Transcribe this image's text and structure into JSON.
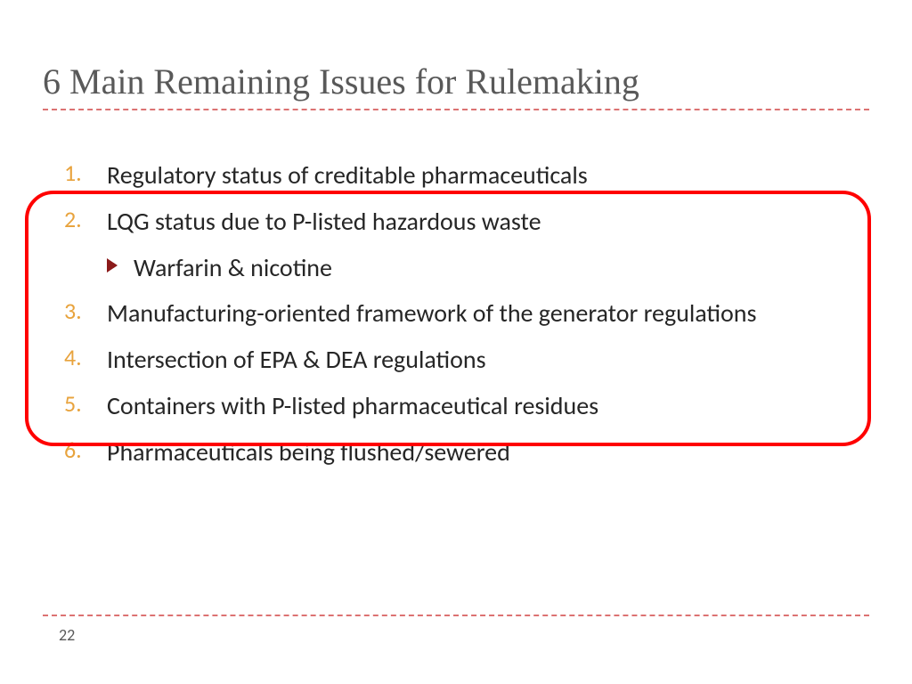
{
  "title": "6 Main Remaining Issues for Rulemaking",
  "items": [
    {
      "num": "1.",
      "text": "Regulatory status of creditable pharmaceuticals"
    },
    {
      "num": "2.",
      "text": "LQG status due to P-listed hazardous waste"
    },
    {
      "num": "3.",
      "text": "Manufacturing-oriented framework of the generator regulations"
    },
    {
      "num": "4.",
      "text": "Intersection of EPA & DEA regulations"
    },
    {
      "num": "5.",
      "text": "Containers with P-listed pharmaceutical residues"
    },
    {
      "num": "6.",
      "text": "Pharmaceuticals being flushed/sewered"
    }
  ],
  "subitem": "Warfarin & nicotine",
  "page_number": "22",
  "colors": {
    "title": "#595959",
    "number": "#e8a33d",
    "body": "#262626",
    "accent_dash": "#c00000",
    "callout_border": "#ff0000",
    "sub_bullet": "#8b1a1a",
    "background": "#ffffff"
  },
  "typography": {
    "title_fontsize": 40,
    "body_fontsize": 28,
    "number_fontsize": 26,
    "pagenum_fontsize": 18,
    "title_family": "Georgia serif",
    "body_family": "Gill Sans"
  },
  "callout": {
    "covers_items": [
      2,
      3,
      4,
      5
    ],
    "border_radius": 32,
    "border_width": 4
  }
}
